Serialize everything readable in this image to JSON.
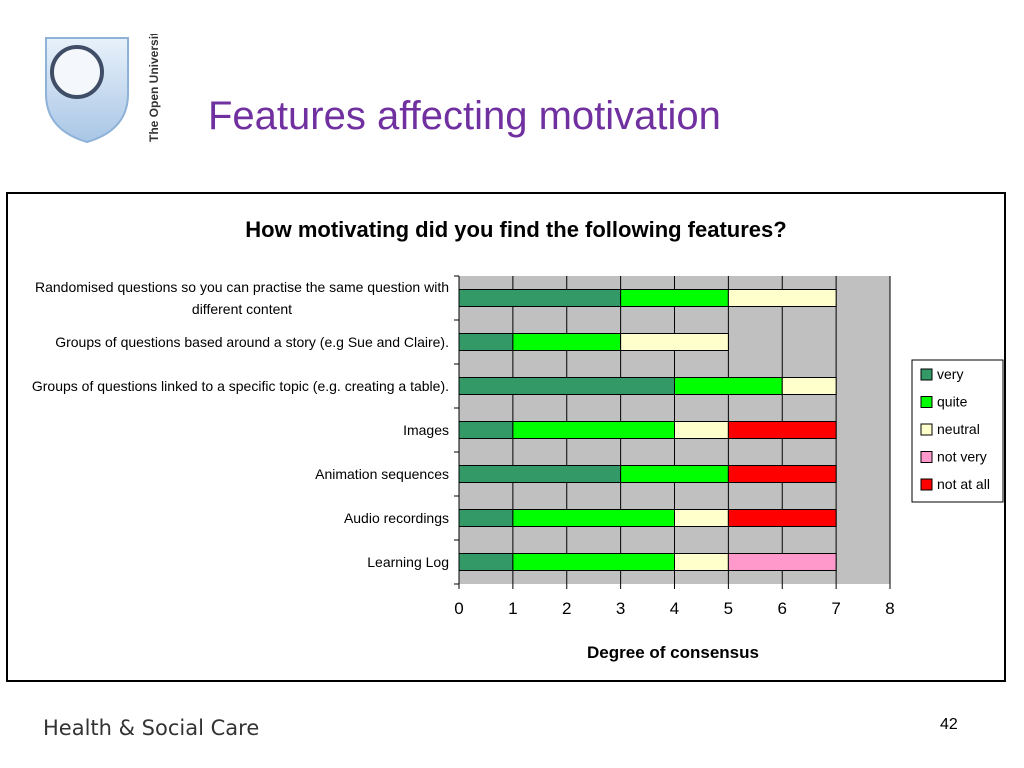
{
  "header": {
    "title": "Features affecting motivation",
    "logo_text": "The Open University"
  },
  "footer": {
    "brand": "Health & Social Care",
    "page_number": "42"
  },
  "colors": {
    "title": "#7030a0",
    "plot_bg": "#c0c0c0"
  },
  "chart_data": {
    "type": "bar",
    "orientation": "horizontal",
    "stacked": true,
    "title": "How motivating did you find the following features?",
    "xlabel": "Degree of consensus",
    "ylabel": "",
    "xlim": [
      0,
      8
    ],
    "x_ticks": [
      "0",
      "1",
      "2",
      "3",
      "4",
      "5",
      "6",
      "7",
      "8"
    ],
    "grid": true,
    "legend_position": "right",
    "categories": [
      "Randomised questions so you can practise the same question with different content",
      "Groups of questions based around a story (e.g Sue and Claire).",
      "Groups of questions linked to a specific topic (e.g. creating a table).",
      "Images",
      "Animation sequences",
      "Audio recordings",
      "Learning Log"
    ],
    "series": [
      {
        "name": "very",
        "color": "#339966",
        "values": [
          3,
          1,
          4,
          1,
          3,
          1,
          1
        ]
      },
      {
        "name": "quite",
        "color": "#00ff00",
        "values": [
          2,
          2,
          2,
          3,
          2,
          3,
          3
        ]
      },
      {
        "name": "neutral",
        "color": "#ffffcc",
        "values": [
          2,
          2,
          1,
          1,
          0,
          1,
          1
        ]
      },
      {
        "name": "not very",
        "color": "#ff99cc",
        "values": [
          0,
          0,
          0,
          0,
          0,
          0,
          2
        ]
      },
      {
        "name": "not at all",
        "color": "#ff0000",
        "values": [
          0,
          0,
          0,
          2,
          2,
          2,
          0
        ]
      }
    ]
  }
}
